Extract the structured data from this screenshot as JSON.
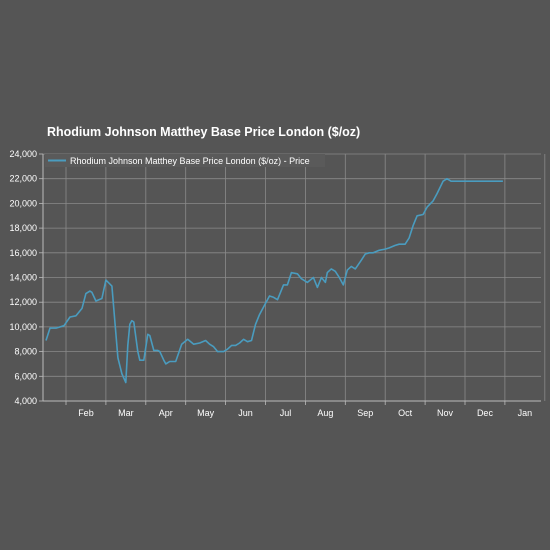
{
  "chart_data": {
    "type": "line",
    "title": "Rhodium Johnson Matthey Base Price London ($/oz)",
    "ylim": [
      4000,
      24000
    ],
    "y_ticks": [
      "4,000",
      "6,000",
      "8,000",
      "10,000",
      "12,000",
      "14,000",
      "16,000",
      "18,000",
      "20,000",
      "22,000",
      "24,000"
    ],
    "x_ticks": [
      "Feb",
      "Mar",
      "Apr",
      "May",
      "Jun",
      "Jul",
      "Aug",
      "Sep",
      "Oct",
      "Nov",
      "Dec",
      "Jan"
    ],
    "xlabel": "",
    "ylabel": "",
    "grid": true,
    "legend_position": "top-left",
    "series": [
      {
        "name": "Rhodium Johnson Matthey Base Price London ($/oz) - Price",
        "color": "#4a9cbf",
        "x": [
          0,
          0.1,
          0.25,
          0.45,
          0.6,
          0.75,
          0.9,
          1.0,
          1.1,
          1.15,
          1.25,
          1.4,
          1.5,
          1.65,
          1.8,
          1.9,
          2.0,
          2.05,
          2.1,
          2.15,
          2.2,
          2.25,
          2.3,
          2.35,
          2.45,
          2.55,
          2.6,
          2.7,
          2.8,
          2.85,
          2.95,
          3.0,
          3.1,
          3.25,
          3.4,
          3.55,
          3.7,
          3.85,
          4.0,
          4.1,
          4.2,
          4.3,
          4.45,
          4.55,
          4.65,
          4.75,
          4.85,
          4.95,
          5.05,
          5.15,
          5.25,
          5.35,
          5.5,
          5.6,
          5.7,
          5.8,
          5.95,
          6.05,
          6.15,
          6.3,
          6.4,
          6.55,
          6.7,
          6.8,
          6.9,
          7.0,
          7.05,
          7.15,
          7.25,
          7.35,
          7.45,
          7.55,
          7.65,
          7.75,
          7.9,
          8.0,
          8.1,
          8.2,
          8.35,
          8.5,
          8.6,
          8.75,
          8.85,
          9.0,
          9.1,
          9.2,
          9.3,
          9.45,
          9.55,
          9.7,
          9.8,
          9.95,
          10.05,
          10.15,
          10.3,
          10.45,
          10.55,
          10.65,
          10.75,
          10.85,
          10.95,
          11.05,
          11.15,
          11.25,
          11.35,
          11.45
        ],
        "y": [
          8900,
          9900,
          9900,
          10100,
          10800,
          10900,
          11500,
          12700,
          12900,
          12800,
          12100,
          12300,
          13800,
          13300,
          7500,
          6200,
          5500,
          8500,
          10200,
          10500,
          10400,
          9200,
          8000,
          7300,
          7300,
          9400,
          9300,
          8100,
          8100,
          8000,
          7300,
          7000,
          7200,
          7200,
          8600,
          9000,
          8600,
          8700,
          8900,
          8600,
          8400,
          8000,
          8000,
          8200,
          8500,
          8500,
          8700,
          9000,
          8800,
          8900,
          10200,
          11000,
          11900,
          12500,
          12400,
          12200,
          13400,
          13400,
          14400,
          14300,
          13900,
          13600,
          14000,
          13200,
          14000,
          13600,
          14400,
          14700,
          14500,
          14000,
          13400,
          14600,
          14900,
          14700,
          15400,
          15900,
          16000,
          16000,
          16200,
          16300,
          16400,
          16600,
          16700,
          16700,
          17200,
          18200,
          19000,
          19100,
          19700,
          20200,
          20800,
          21800,
          22000,
          21800,
          21800,
          21800,
          21800,
          21800,
          21800,
          21800,
          21800,
          21800,
          21800,
          21800,
          21800,
          21800
        ]
      }
    ]
  }
}
